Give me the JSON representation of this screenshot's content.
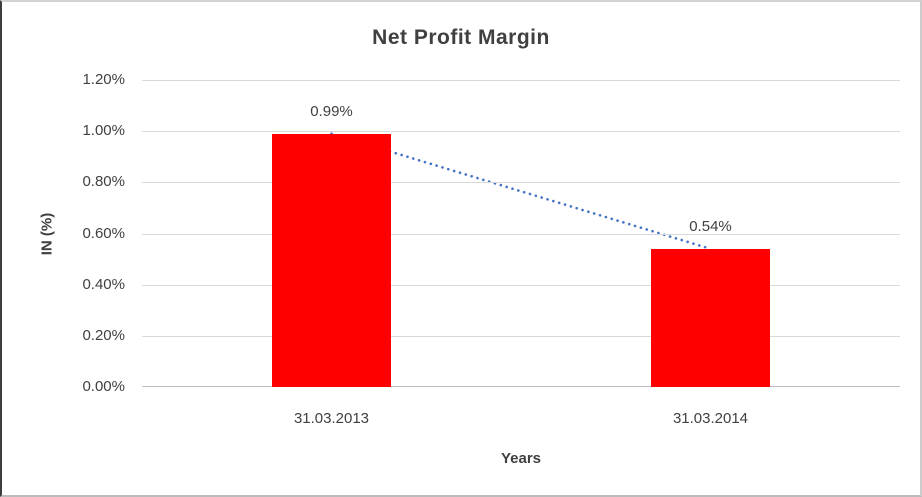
{
  "chart_data": {
    "type": "bar",
    "title": "Net Profit Margin",
    "xlabel": "Years",
    "ylabel": "IN (%)",
    "categories": [
      "31.03.2013",
      "31.03.2014"
    ],
    "values": [
      0.99,
      0.54
    ],
    "value_labels": [
      "0.99%",
      "0.54%"
    ],
    "y_ticks": [
      "1.20%",
      "1.00%",
      "0.80%",
      "0.60%",
      "0.40%",
      "0.20%",
      "0.00%"
    ],
    "y_tick_values": [
      1.2,
      1.0,
      0.8,
      0.6,
      0.4,
      0.2,
      0.0
    ],
    "ylim": [
      0,
      1.2
    ],
    "grid": true,
    "legend_position": "none",
    "bar_color": "#ff0000",
    "trendline": {
      "type": "linear",
      "style": "dotted",
      "color": "#4472c4",
      "connects_values": [
        0.99,
        0.54
      ]
    }
  },
  "colors": {
    "text": "#404040",
    "gridline": "#d9d9d9",
    "axis_line": "#bfbfbf",
    "bar": "#ff0000",
    "trendline": "#4472c4"
  }
}
